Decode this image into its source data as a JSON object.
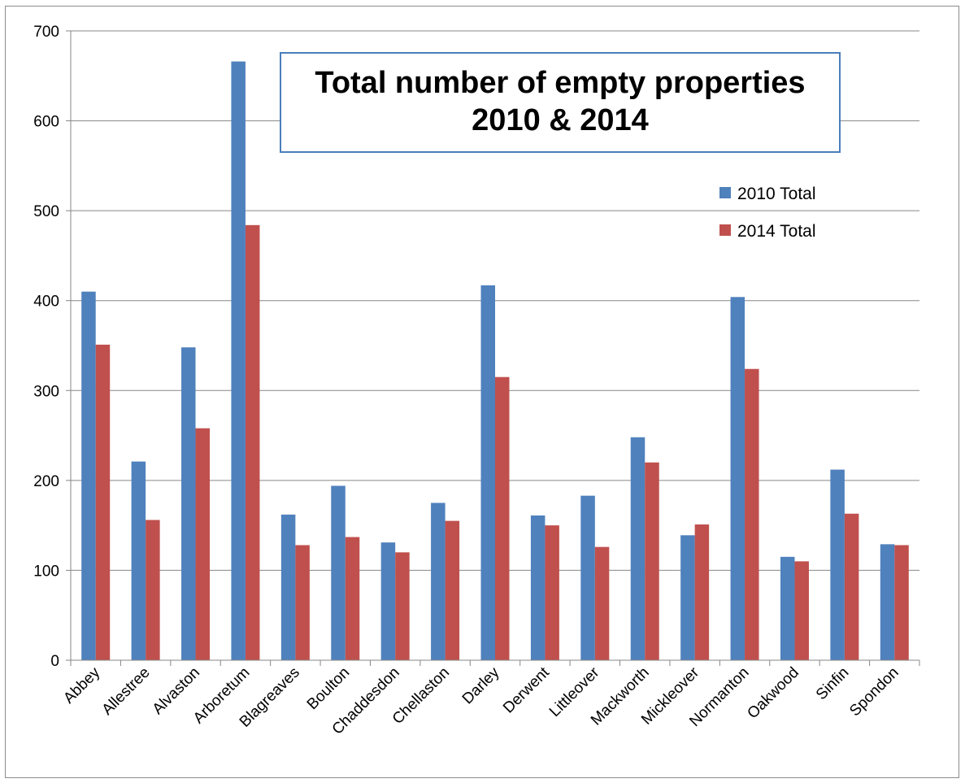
{
  "chart_data": {
    "type": "bar",
    "title_line1": "Total number of empty properties",
    "title_line2": "2010 & 2014",
    "xlabel": "",
    "ylabel": "",
    "ylim": [
      0,
      700
    ],
    "yticks": [
      0,
      100,
      200,
      300,
      400,
      500,
      600,
      700
    ],
    "grid": true,
    "legend_position": "right",
    "categories": [
      "Abbey",
      "Allestree",
      "Alvaston",
      "Arboretum",
      "Blagreaves",
      "Boulton",
      "Chaddesdon",
      "Chellaston",
      "Darley",
      "Derwent",
      "Littleover",
      "Mackworth",
      "Mickleover",
      "Normanton",
      "Oakwood",
      "Sinfin",
      "Spondon"
    ],
    "series": [
      {
        "name": "2010 Total",
        "color": "#4f81bd",
        "values": [
          410,
          221,
          348,
          666,
          162,
          194,
          131,
          175,
          417,
          161,
          183,
          248,
          139,
          404,
          115,
          212,
          129
        ]
      },
      {
        "name": "2014 Total",
        "color": "#c0504d",
        "values": [
          351,
          156,
          258,
          484,
          128,
          137,
          120,
          155,
          315,
          150,
          126,
          220,
          151,
          324,
          110,
          163,
          128
        ]
      }
    ]
  }
}
